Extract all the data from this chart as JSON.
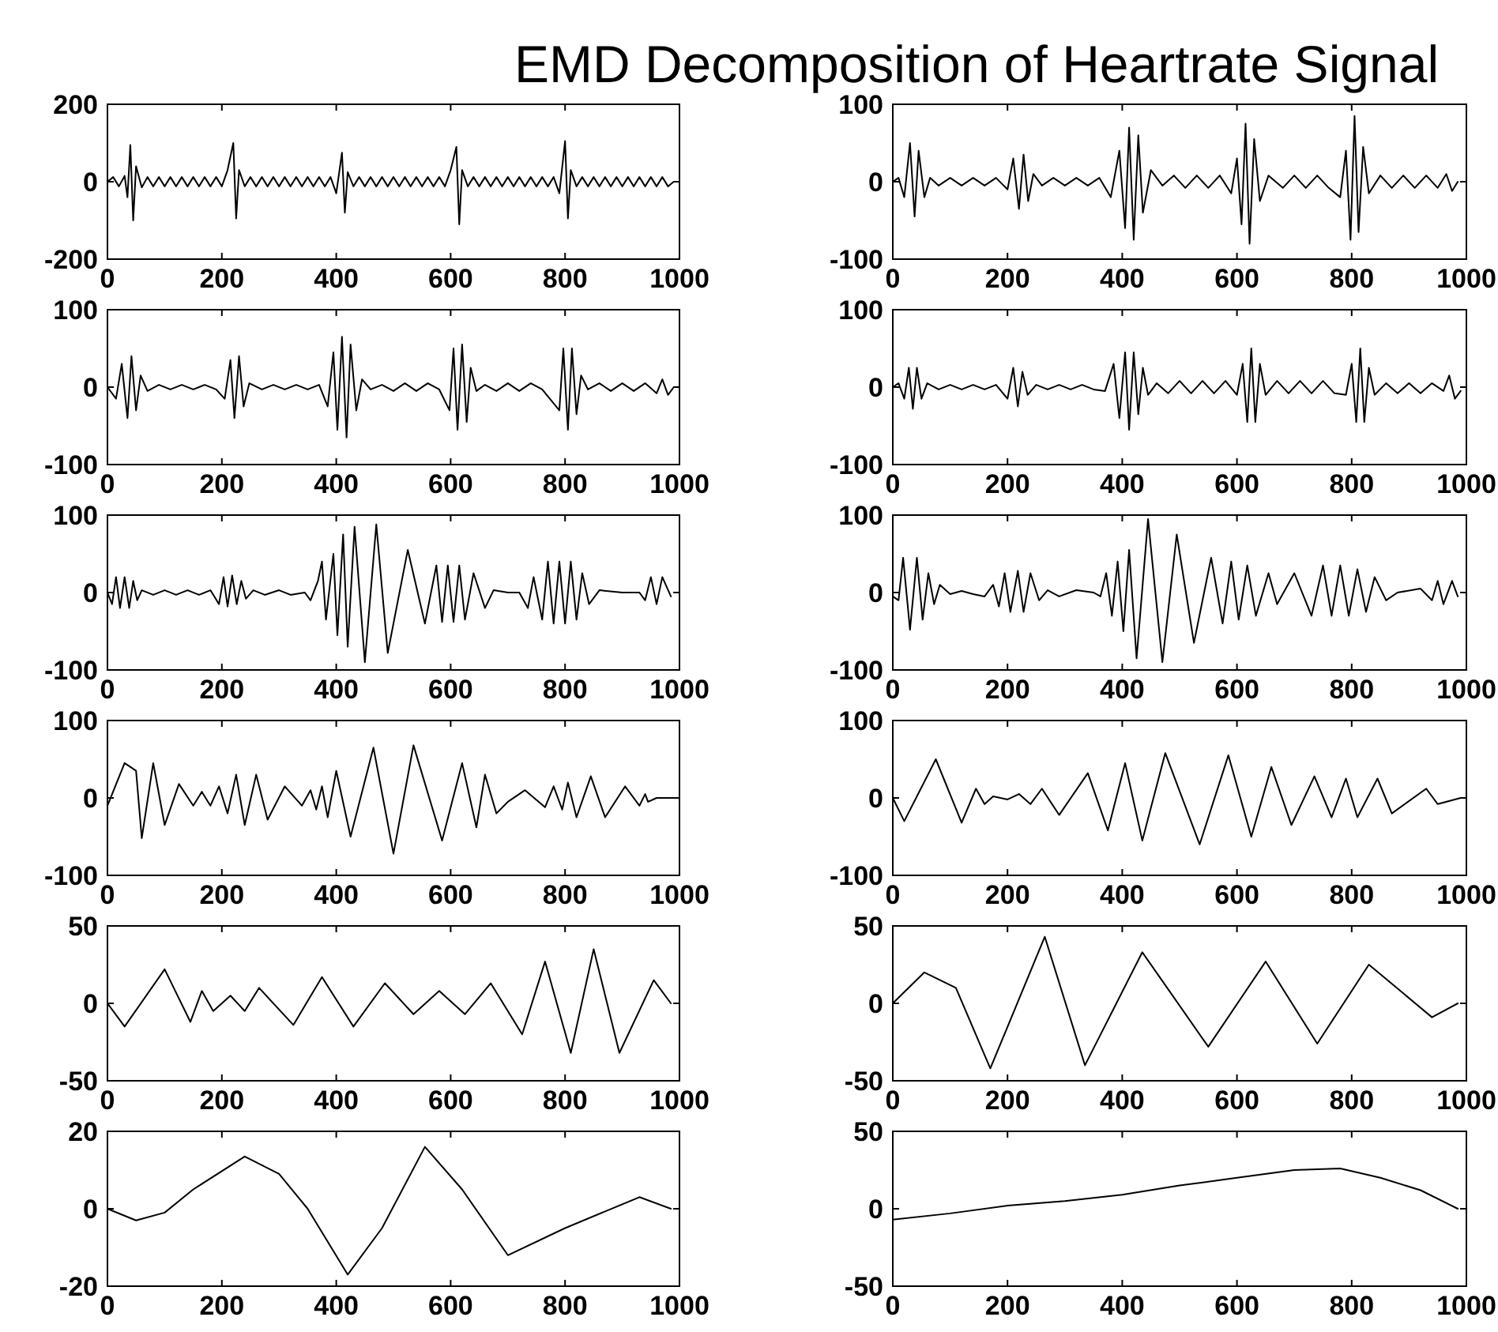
{
  "chart_data": [
    {
      "type": "line",
      "title": "EMD Decomposition of Heartrate Signal",
      "xlim": [
        0,
        1000
      ],
      "xticks": [
        0,
        200,
        400,
        600,
        800,
        1000
      ],
      "ylim": [
        -200,
        200
      ],
      "yticks": [
        -200,
        0,
        200
      ],
      "series": [
        {
          "color": "#000000",
          "x": [
            0,
            10,
            20,
            30,
            35,
            40,
            45,
            50,
            60,
            70,
            80,
            90,
            100,
            110,
            120,
            130,
            140,
            150,
            160,
            170,
            180,
            190,
            200,
            210,
            220,
            225,
            230,
            240,
            250,
            260,
            270,
            280,
            290,
            300,
            310,
            320,
            330,
            340,
            350,
            360,
            370,
            380,
            390,
            400,
            410,
            415,
            420,
            430,
            440,
            450,
            460,
            470,
            480,
            490,
            500,
            510,
            520,
            530,
            540,
            550,
            560,
            570,
            580,
            590,
            600,
            610,
            615,
            620,
            630,
            640,
            650,
            660,
            670,
            680,
            690,
            700,
            710,
            720,
            730,
            740,
            750,
            760,
            770,
            780,
            790,
            800,
            805,
            810,
            820,
            830,
            840,
            850,
            860,
            870,
            880,
            890,
            900,
            910,
            920,
            930,
            940,
            950,
            960,
            970,
            980,
            990
          ],
          "values": [
            0,
            12,
            -12,
            15,
            -40,
            95,
            -100,
            40,
            -15,
            12,
            -12,
            12,
            -12,
            12,
            -12,
            12,
            -12,
            12,
            -12,
            12,
            -12,
            12,
            -12,
            30,
            100,
            -95,
            30,
            -12,
            12,
            -12,
            12,
            -12,
            12,
            -12,
            12,
            -12,
            12,
            -12,
            12,
            -12,
            12,
            -12,
            12,
            -30,
            75,
            -80,
            25,
            -12,
            12,
            -12,
            12,
            -12,
            12,
            -12,
            12,
            -12,
            12,
            -12,
            12,
            -12,
            12,
            -12,
            12,
            -12,
            30,
            90,
            -110,
            30,
            -12,
            12,
            -12,
            12,
            -12,
            12,
            -12,
            12,
            -12,
            12,
            -12,
            12,
            -12,
            12,
            -12,
            12,
            -30,
            105,
            -95,
            30,
            -12,
            12,
            -12,
            12,
            -12,
            12,
            -12,
            12,
            -12,
            12,
            -12,
            12,
            -12,
            12,
            -12,
            12,
            -12,
            0
          ]
        }
      ]
    },
    {
      "type": "line",
      "xlim": [
        0,
        1000
      ],
      "xticks": [
        0,
        200,
        400,
        600,
        800,
        1000
      ],
      "ylim": [
        -100,
        100
      ],
      "yticks": [
        -100,
        0,
        100
      ],
      "series": [
        {
          "color": "#000000",
          "x": [
            0,
            10,
            20,
            30,
            38,
            45,
            55,
            65,
            80,
            100,
            120,
            140,
            160,
            180,
            200,
            210,
            220,
            228,
            236,
            245,
            260,
            280,
            300,
            320,
            340,
            360,
            380,
            395,
            405,
            412,
            420,
            428,
            436,
            450,
            470,
            490,
            510,
            530,
            550,
            570,
            590,
            600,
            608,
            615,
            622,
            630,
            640,
            655,
            680,
            700,
            720,
            740,
            760,
            780,
            790,
            798,
            805,
            812,
            820,
            830,
            850,
            870,
            890,
            910,
            930,
            950,
            965,
            975,
            985
          ],
          "values": [
            0,
            5,
            -20,
            50,
            -45,
            40,
            -20,
            5,
            -5,
            5,
            -5,
            5,
            -5,
            5,
            -10,
            30,
            -35,
            35,
            -25,
            10,
            -5,
            5,
            -5,
            5,
            -5,
            5,
            -20,
            40,
            -60,
            70,
            -75,
            60,
            -40,
            15,
            -5,
            8,
            -8,
            8,
            -8,
            8,
            -15,
            30,
            -55,
            75,
            -80,
            55,
            -25,
            8,
            -8,
            8,
            -8,
            8,
            -8,
            -20,
            40,
            -75,
            85,
            -65,
            45,
            -15,
            8,
            -8,
            8,
            -8,
            8,
            -8,
            10,
            -12,
            0
          ]
        }
      ]
    },
    {
      "type": "line",
      "xlim": [
        0,
        1000
      ],
      "xticks": [
        0,
        200,
        400,
        600,
        800,
        1000
      ],
      "ylim": [
        -100,
        100
      ],
      "yticks": [
        -100,
        0,
        100
      ],
      "series": [
        {
          "color": "#000000",
          "x": [
            0,
            15,
            25,
            35,
            42,
            50,
            58,
            70,
            90,
            110,
            130,
            150,
            170,
            190,
            205,
            215,
            222,
            230,
            238,
            248,
            270,
            290,
            310,
            330,
            350,
            370,
            385,
            395,
            402,
            410,
            418,
            425,
            435,
            445,
            460,
            480,
            500,
            520,
            540,
            560,
            580,
            598,
            605,
            612,
            620,
            628,
            635,
            645,
            660,
            680,
            700,
            720,
            740,
            760,
            790,
            797,
            805,
            812,
            820,
            828,
            840,
            860,
            880,
            900,
            920,
            940,
            960,
            970,
            980,
            990
          ],
          "values": [
            0,
            -15,
            30,
            -40,
            40,
            -30,
            15,
            -5,
            3,
            -3,
            3,
            -3,
            3,
            -3,
            -15,
            35,
            -40,
            40,
            -25,
            5,
            -3,
            3,
            -3,
            3,
            -3,
            3,
            -25,
            45,
            -55,
            65,
            -65,
            55,
            -30,
            10,
            -3,
            3,
            -5,
            5,
            -5,
            5,
            -3,
            -30,
            50,
            -55,
            55,
            -45,
            25,
            -5,
            3,
            -5,
            5,
            -5,
            5,
            -3,
            -30,
            50,
            -55,
            50,
            -35,
            15,
            -3,
            5,
            -5,
            5,
            -5,
            5,
            -8,
            10,
            -10,
            0
          ]
        }
      ]
    },
    {
      "type": "line",
      "xlim": [
        0,
        1000
      ],
      "xticks": [
        0,
        200,
        400,
        600,
        800,
        1000
      ],
      "ylim": [
        -100,
        100
      ],
      "yticks": [
        -100,
        0,
        100
      ],
      "series": [
        {
          "color": "#000000",
          "x": [
            0,
            10,
            20,
            28,
            35,
            42,
            50,
            60,
            80,
            100,
            120,
            140,
            160,
            180,
            200,
            210,
            218,
            226,
            235,
            250,
            270,
            290,
            310,
            330,
            350,
            370,
            385,
            395,
            405,
            412,
            420,
            428,
            436,
            445,
            460,
            480,
            500,
            520,
            540,
            560,
            580,
            600,
            610,
            618,
            625,
            632,
            640,
            650,
            670,
            690,
            710,
            730,
            750,
            770,
            790,
            800,
            808,
            815,
            822,
            830,
            840,
            860,
            880,
            900,
            920,
            940,
            960,
            970,
            980,
            990
          ],
          "values": [
            0,
            5,
            -15,
            25,
            -28,
            25,
            -15,
            5,
            -3,
            3,
            -3,
            3,
            -3,
            3,
            -15,
            25,
            -25,
            20,
            -10,
            3,
            -3,
            3,
            -3,
            3,
            -3,
            -5,
            30,
            -40,
            45,
            -55,
            45,
            -35,
            25,
            -10,
            5,
            -8,
            8,
            -8,
            8,
            -8,
            8,
            -10,
            30,
            -45,
            50,
            -45,
            30,
            -10,
            8,
            -8,
            8,
            -8,
            8,
            -8,
            -10,
            30,
            -45,
            50,
            -45,
            25,
            -10,
            5,
            -8,
            5,
            -8,
            5,
            -5,
            15,
            -15,
            -5
          ]
        }
      ]
    },
    {
      "type": "line",
      "xlim": [
        0,
        1000
      ],
      "xticks": [
        0,
        200,
        400,
        600,
        800,
        1000
      ],
      "ylim": [
        -100,
        100
      ],
      "yticks": [
        -100,
        0,
        100
      ],
      "series": [
        {
          "color": "#000000",
          "x": [
            0,
            8,
            15,
            22,
            30,
            38,
            45,
            52,
            60,
            80,
            100,
            120,
            140,
            160,
            180,
            195,
            203,
            210,
            218,
            226,
            234,
            242,
            255,
            275,
            300,
            320,
            345,
            355,
            368,
            375,
            382,
            395,
            402,
            412,
            420,
            432,
            450,
            470,
            490,
            525,
            555,
            575,
            585,
            595,
            605,
            615,
            625,
            640,
            660,
            675,
            700,
            720,
            735,
            745,
            760,
            770,
            780,
            790,
            800,
            810,
            820,
            830,
            842,
            860,
            900,
            930,
            940,
            950,
            960,
            970,
            985
          ],
          "values": [
            0,
            -15,
            20,
            -20,
            20,
            -20,
            15,
            -10,
            3,
            -3,
            3,
            -3,
            3,
            -3,
            3,
            -15,
            20,
            -18,
            22,
            -15,
            15,
            -8,
            3,
            -3,
            3,
            -3,
            0,
            -10,
            15,
            40,
            -35,
            50,
            -55,
            75,
            -70,
            85,
            -90,
            88,
            -78,
            55,
            -40,
            35,
            -38,
            35,
            -38,
            35,
            -35,
            25,
            -20,
            3,
            0,
            0,
            -20,
            20,
            -35,
            40,
            -40,
            40,
            -40,
            40,
            -35,
            25,
            -15,
            3,
            0,
            0,
            -10,
            20,
            -15,
            20,
            -5
          ]
        }
      ]
    },
    {
      "type": "line",
      "xlim": [
        0,
        1000
      ],
      "xticks": [
        0,
        200,
        400,
        600,
        800,
        1000
      ],
      "ylim": [
        -100,
        100
      ],
      "yticks": [
        -100,
        0,
        100
      ],
      "series": [
        {
          "color": "#000000",
          "x": [
            0,
            10,
            18,
            30,
            42,
            52,
            62,
            72,
            82,
            100,
            120,
            140,
            160,
            175,
            185,
            195,
            205,
            218,
            228,
            240,
            255,
            270,
            290,
            320,
            350,
            362,
            372,
            382,
            392,
            402,
            412,
            425,
            445,
            470,
            495,
            525,
            555,
            575,
            590,
            603,
            618,
            633,
            655,
            670,
            700,
            730,
            750,
            765,
            780,
            795,
            810,
            825,
            840,
            860,
            880,
            920,
            940,
            950,
            960,
            975,
            985
          ],
          "values": [
            -5,
            -10,
            45,
            -48,
            45,
            -35,
            25,
            -15,
            10,
            -2,
            2,
            -2,
            -5,
            10,
            -18,
            25,
            -25,
            28,
            -25,
            25,
            -10,
            3,
            -5,
            3,
            0,
            -5,
            25,
            -30,
            40,
            -50,
            55,
            -85,
            95,
            -90,
            75,
            -65,
            45,
            -40,
            40,
            -35,
            35,
            -30,
            25,
            -15,
            25,
            -30,
            35,
            -30,
            35,
            -30,
            30,
            -25,
            20,
            -10,
            0,
            5,
            -10,
            15,
            -15,
            15,
            -5
          ]
        }
      ]
    },
    {
      "type": "line",
      "xlim": [
        0,
        1000
      ],
      "xticks": [
        0,
        200,
        400,
        600,
        800,
        1000
      ],
      "ylim": [
        -100,
        100
      ],
      "yticks": [
        -100,
        0,
        100
      ],
      "series": [
        {
          "color": "#000000",
          "x": [
            0,
            30,
            50,
            60,
            80,
            100,
            125,
            150,
            165,
            180,
            195,
            210,
            225,
            240,
            260,
            280,
            310,
            340,
            355,
            365,
            375,
            385,
            400,
            425,
            465,
            500,
            535,
            585,
            620,
            645,
            660,
            680,
            700,
            730,
            765,
            780,
            795,
            805,
            820,
            845,
            870,
            905,
            930,
            940,
            945,
            960,
            990
          ],
          "values": [
            -10,
            45,
            35,
            -52,
            45,
            -35,
            18,
            -10,
            8,
            -10,
            15,
            -20,
            30,
            -35,
            30,
            -28,
            15,
            -10,
            10,
            -15,
            15,
            -25,
            35,
            -50,
            65,
            -72,
            68,
            -55,
            45,
            -38,
            30,
            -20,
            -5,
            10,
            -12,
            15,
            -15,
            20,
            -25,
            28,
            -25,
            15,
            -10,
            5,
            -5,
            0,
            0
          ]
        }
      ]
    },
    {
      "type": "line",
      "xlim": [
        0,
        1000
      ],
      "xticks": [
        0,
        200,
        400,
        600,
        800,
        1000
      ],
      "ylim": [
        -100,
        100
      ],
      "yticks": [
        -100,
        0,
        100
      ],
      "series": [
        {
          "color": "#000000",
          "x": [
            0,
            20,
            75,
            120,
            145,
            160,
            175,
            200,
            220,
            240,
            260,
            290,
            340,
            375,
            405,
            435,
            475,
            535,
            585,
            625,
            660,
            695,
            735,
            765,
            790,
            810,
            845,
            870,
            930,
            950,
            990
          ],
          "values": [
            0,
            -30,
            50,
            -32,
            12,
            -8,
            2,
            -2,
            5,
            -8,
            12,
            -22,
            32,
            -42,
            45,
            -55,
            58,
            -60,
            55,
            -50,
            40,
            -35,
            28,
            -25,
            25,
            -25,
            25,
            -20,
            12,
            -8,
            0
          ]
        }
      ]
    },
    {
      "type": "line",
      "xlim": [
        0,
        1000
      ],
      "xticks": [
        0,
        200,
        400,
        600,
        800,
        1000
      ],
      "ylim": [
        -50,
        50
      ],
      "yticks": [
        -50,
        0,
        50
      ],
      "series": [
        {
          "color": "#000000",
          "x": [
            0,
            30,
            100,
            145,
            165,
            185,
            215,
            240,
            265,
            325,
            375,
            430,
            485,
            535,
            580,
            625,
            670,
            725,
            765,
            810,
            850,
            895,
            955,
            985
          ],
          "values": [
            0,
            -15,
            22,
            -12,
            8,
            -5,
            5,
            -5,
            10,
            -14,
            17,
            -15,
            13,
            -7,
            8,
            -7,
            13,
            -20,
            27,
            -32,
            35,
            -32,
            15,
            0
          ]
        }
      ]
    },
    {
      "type": "line",
      "xlim": [
        0,
        1000
      ],
      "xticks": [
        0,
        200,
        400,
        600,
        800,
        1000
      ],
      "ylim": [
        -50,
        50
      ],
      "yticks": [
        -50,
        0,
        50
      ],
      "series": [
        {
          "color": "#000000",
          "x": [
            0,
            55,
            110,
            170,
            265,
            335,
            435,
            550,
            650,
            740,
            830,
            940,
            985
          ],
          "values": [
            0,
            20,
            10,
            -42,
            43,
            -40,
            33,
            -28,
            27,
            -26,
            25,
            -9,
            0
          ]
        }
      ]
    },
    {
      "type": "line",
      "xlim": [
        0,
        1000
      ],
      "xticks": [
        0,
        200,
        400,
        600,
        800,
        1000
      ],
      "ylim": [
        -20,
        20
      ],
      "yticks": [
        -20,
        0,
        20
      ],
      "series": [
        {
          "color": "#000000",
          "x": [
            0,
            50,
            100,
            150,
            240,
            300,
            350,
            420,
            480,
            555,
            620,
            700,
            800,
            930,
            985
          ],
          "values": [
            0,
            -3,
            -1,
            5,
            13.5,
            9,
            0,
            -17,
            -5,
            16,
            5,
            -12,
            -5,
            3,
            0
          ]
        }
      ]
    },
    {
      "type": "line",
      "xlim": [
        0,
        1000
      ],
      "xticks": [
        0,
        200,
        400,
        600,
        800,
        1000
      ],
      "ylim": [
        -50,
        50
      ],
      "yticks": [
        -50,
        0,
        50
      ],
      "series": [
        {
          "color": "#000000",
          "x": [
            0,
            100,
            200,
            300,
            400,
            500,
            600,
            700,
            780,
            850,
            920,
            985
          ],
          "values": [
            -7,
            -3,
            2,
            5,
            9,
            15,
            20,
            25,
            26,
            20,
            12,
            0
          ]
        }
      ]
    }
  ]
}
